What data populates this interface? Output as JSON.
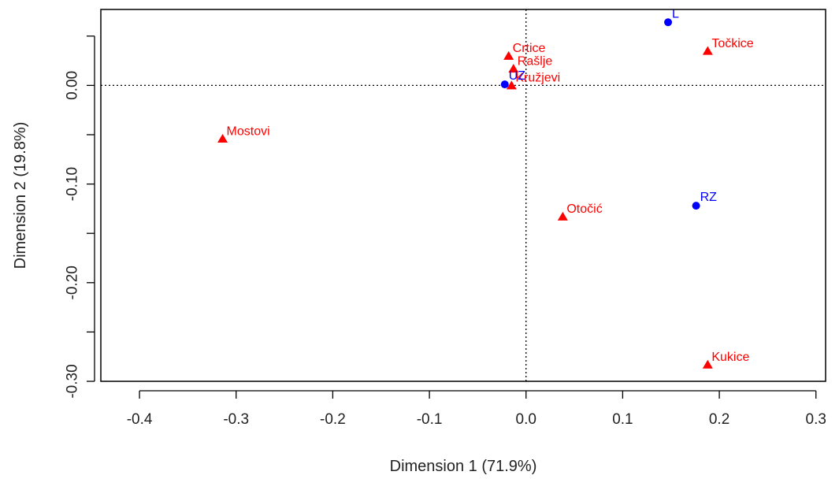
{
  "chart_data": {
    "type": "scatter",
    "title": "",
    "xlabel": "Dimension 1 (71.9%)",
    "ylabel": "Dimension 2 (19.8%)",
    "xlim": [
      -0.44,
      0.31
    ],
    "ylim": [
      -0.3,
      0.077
    ],
    "x_ticks": [
      -0.4,
      -0.3,
      -0.2,
      -0.1,
      0.0,
      0.1,
      0.2,
      0.3
    ],
    "x_tick_labels": [
      "-0.4",
      "-0.3",
      "-0.2",
      "-0.1",
      "0.0",
      "0.1",
      "0.2",
      "0.3"
    ],
    "y_ticks": [
      0.05,
      0.0,
      -0.05,
      -0.1,
      -0.15,
      -0.2,
      -0.25,
      -0.3
    ],
    "y_tick_labels": [
      "",
      "0.00",
      "",
      "-0.10",
      "",
      "-0.20",
      "",
      "-0.30"
    ],
    "grid": false,
    "reference_lines": {
      "x": 0,
      "y": 0,
      "style": "dotted"
    },
    "series": [
      {
        "marker": "triangle",
        "color": "#ff0000",
        "points": [
          {
            "label": "Crtice",
            "x": -0.018,
            "y": 0.029
          },
          {
            "label": "Rašlje",
            "x": -0.013,
            "y": 0.016
          },
          {
            "label": "Kružjevi",
            "x": -0.015,
            "y": -0.001
          },
          {
            "label": "Točkice",
            "x": 0.188,
            "y": 0.034
          },
          {
            "label": "Mostovi",
            "x": -0.314,
            "y": -0.055
          },
          {
            "label": "Otočić",
            "x": 0.038,
            "y": -0.134
          },
          {
            "label": "Kukice",
            "x": 0.188,
            "y": -0.284
          }
        ]
      },
      {
        "marker": "circle",
        "color": "#0000ff",
        "points": [
          {
            "label": "L",
            "x": 0.147,
            "y": 0.064
          },
          {
            "label": "UZ",
            "x": -0.022,
            "y": 0.001
          },
          {
            "label": "RZ",
            "x": 0.176,
            "y": -0.122
          }
        ]
      }
    ]
  }
}
